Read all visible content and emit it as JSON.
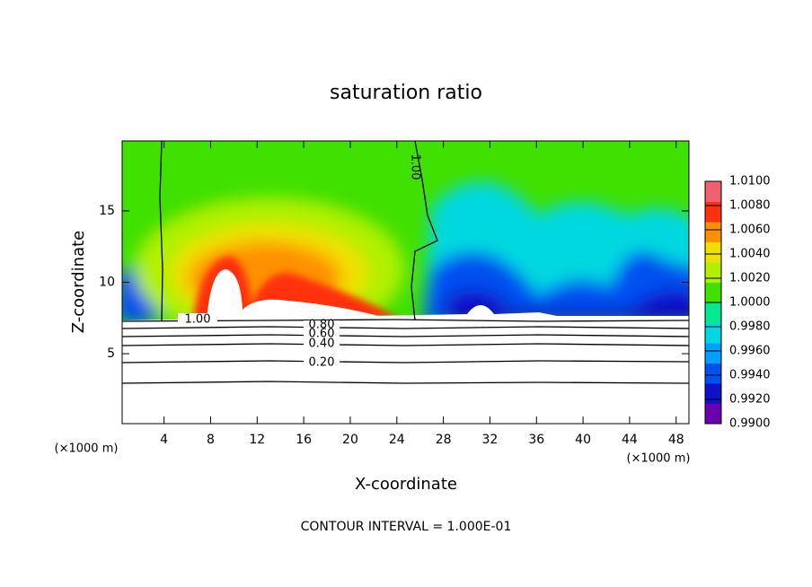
{
  "chart_data": {
    "type": "contour",
    "title": "saturation ratio",
    "x_label": "X-coordinate",
    "y_label": "Z-coordinate",
    "x_unit_labels": [
      "(×1000 m)",
      "(×1000 m)"
    ],
    "footer": "CONTOUR INTERVAL = 1.000E-01",
    "xlim": [
      0.4,
      49.1
    ],
    "xticks": [
      4,
      8,
      12,
      16,
      20,
      24,
      28,
      32,
      36,
      40,
      44,
      48
    ],
    "ylim": [
      0.1,
      19.9
    ],
    "yticks": [
      5,
      10,
      15
    ],
    "contour_lines": [
      {
        "value": 1.0,
        "label": "1.00"
      },
      {
        "value": 1.0,
        "label": "1.00"
      },
      {
        "value": 0.8,
        "label": "0.80"
      },
      {
        "value": 0.6,
        "label": "0.60"
      },
      {
        "value": 0.4,
        "label": "0.40"
      },
      {
        "value": 0.2,
        "label": "0.20"
      }
    ],
    "colorbar": {
      "lim": [
        0.99,
        1.01
      ],
      "ticks": [
        {
          "value": 0.99,
          "label": "0.9900"
        },
        {
          "value": 0.992,
          "label": "0.9920"
        },
        {
          "value": 0.994,
          "label": "0.9940"
        },
        {
          "value": 0.996,
          "label": "0.9960"
        },
        {
          "value": 0.998,
          "label": "0.9980"
        },
        {
          "value": 1.0,
          "label": "1.0000"
        },
        {
          "value": 1.002,
          "label": "1.0020"
        },
        {
          "value": 1.004,
          "label": "1.0040"
        },
        {
          "value": 1.006,
          "label": "1.0060"
        },
        {
          "value": 1.008,
          "label": "1.0080"
        },
        {
          "value": 1.01,
          "label": "1.0100"
        }
      ],
      "colors": [
        "#6a00b0",
        "#1010c8",
        "#0050f0",
        "#00a0ff",
        "#00d8e0",
        "#00e890",
        "#40e000",
        "#b0f000",
        "#f0e000",
        "#ff9000",
        "#ff3010",
        "#f06070"
      ]
    }
  }
}
